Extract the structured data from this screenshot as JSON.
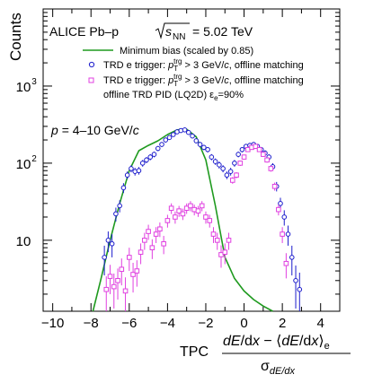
{
  "chart_data": {
    "type": "scatter",
    "title": "ALICE Pb–p",
    "collision_energy": "= 5.02 TeV",
    "annotation": "= 4–10 GeV/",
    "ylabel": "Counts",
    "xlabel_prefix": "TPC",
    "xlim": [
      -10.5,
      5
    ],
    "ylim": [
      1.2,
      10000
    ],
    "y_scale": "log",
    "x_ticks": [
      -10,
      -8,
      -6,
      -4,
      -2,
      0,
      2,
      4
    ],
    "x_tick_labels": [
      "−10",
      "−8",
      "−6",
      "−4",
      "−2",
      "0",
      "2",
      "4"
    ],
    "y_ticks": [
      10,
      100,
      1000
    ],
    "y_tick_mantissa": "10",
    "y_tick_exponents": [
      "",
      "2",
      "3"
    ],
    "legend_placement": "top",
    "series": [
      {
        "name": "Minimum bias (scaled by 0.85)",
        "kind": "line",
        "color": "#1f9a1f",
        "x": [
          -7.9,
          -7.5,
          -7.0,
          -6.5,
          -6.0,
          -5.5,
          -5.0,
          -4.5,
          -4.0,
          -3.5,
          -3.0,
          -2.5,
          -2.0,
          -1.5,
          -1.0,
          -0.5,
          0.0,
          0.5,
          1.0,
          1.5
        ],
        "y": [
          1.2,
          3,
          10,
          30,
          80,
          145,
          170,
          195,
          235,
          270,
          275,
          220,
          110,
          28,
          6,
          3.2,
          2.2,
          1.7,
          1.4,
          1.2
        ]
      },
      {
        "name": "TRD e trigger: > 3 GeV/, offline matching",
        "kind": "points",
        "marker": "circle",
        "color": "#1c1ccc",
        "x": [
          -7.3,
          -7.1,
          -6.9,
          -6.7,
          -6.5,
          -6.3,
          -6.1,
          -5.9,
          -5.7,
          -5.5,
          -5.3,
          -5.1,
          -4.9,
          -4.7,
          -4.5,
          -4.3,
          -4.1,
          -3.9,
          -3.7,
          -3.5,
          -3.3,
          -3.1,
          -2.9,
          -2.7,
          -2.5,
          -2.3,
          -2.1,
          -1.9,
          -1.7,
          -1.5,
          -1.3,
          -1.1,
          -0.9,
          -0.7,
          -0.5,
          -0.3,
          -0.1,
          0.1,
          0.3,
          0.5,
          0.7,
          0.9,
          1.1,
          1.3,
          1.5,
          1.7,
          1.9,
          2.1,
          2.3,
          2.5,
          2.7,
          2.9
        ],
        "y": [
          6,
          10,
          9,
          22,
          28,
          48,
          70,
          85,
          78,
          80,
          100,
          110,
          120,
          130,
          155,
          175,
          200,
          215,
          235,
          255,
          265,
          270,
          250,
          225,
          195,
          175,
          160,
          150,
          120,
          105,
          95,
          85,
          70,
          78,
          100,
          130,
          150,
          165,
          170,
          175,
          165,
          150,
          135,
          120,
          90,
          50,
          30,
          20,
          12,
          6,
          3,
          2.3
        ],
        "err": [
          2.5,
          3,
          3,
          4.5,
          5,
          7,
          8,
          9,
          9,
          9,
          10,
          10,
          11,
          11,
          12,
          13,
          14,
          15,
          15,
          16,
          16,
          16,
          16,
          15,
          14,
          13,
          13,
          12,
          11,
          10,
          10,
          9,
          8,
          9,
          10,
          11,
          12,
          13,
          13,
          13,
          13,
          12,
          12,
          11,
          10,
          7,
          5.5,
          4.5,
          3.5,
          2.5,
          1.7,
          1.5
        ]
      },
      {
        "name": "TRD e trigger: > 3 GeV/, offline matching",
        "name_line2": "offline TRD PID (LQ2D) ε",
        "name_line2_sub": "e",
        "name_line2_rest": "=90%",
        "kind": "points",
        "marker": "square",
        "color": "#e040e0",
        "x": [
          -7.2,
          -7.0,
          -6.8,
          -6.6,
          -6.4,
          -6.2,
          -6.0,
          -5.8,
          -5.6,
          -5.4,
          -5.2,
          -5.0,
          -4.8,
          -4.6,
          -4.4,
          -4.2,
          -4.0,
          -3.8,
          -3.6,
          -3.4,
          -3.2,
          -3.0,
          -2.8,
          -2.6,
          -2.4,
          -2.2,
          -2.0,
          -1.8,
          -1.6,
          -1.4,
          -1.2,
          -1.0,
          -0.8,
          -0.6,
          -0.4,
          -0.2,
          0.0,
          0.2,
          0.4,
          0.6,
          0.8,
          1.0,
          1.2,
          1.4,
          1.6,
          1.8,
          2.0,
          2.2
        ],
        "y": [
          2.3,
          3.4,
          2.5,
          3,
          4.2,
          2.2,
          6,
          3.6,
          4,
          7,
          10,
          13,
          8,
          12,
          14,
          9,
          18,
          26,
          20,
          24,
          22,
          26,
          28,
          25,
          24,
          28,
          20,
          18,
          12,
          10,
          6.5,
          7,
          10,
          60,
          70,
          100,
          120,
          150,
          160,
          165,
          150,
          130,
          110,
          85,
          50,
          25,
          12,
          5
        ],
        "err": [
          1.1,
          1.4,
          1.2,
          1.3,
          1.6,
          1.1,
          2.0,
          1.5,
          1.5,
          2.1,
          2.5,
          2.9,
          2.3,
          2.8,
          3.0,
          2.4,
          3.4,
          4.1,
          3.6,
          3.9,
          3.7,
          4.0,
          4.2,
          4.0,
          3.9,
          4.2,
          3.6,
          3.4,
          2.8,
          2.5,
          2.1,
          2.1,
          2.5,
          6,
          6.5,
          8,
          9,
          10,
          10.5,
          10.5,
          10,
          9,
          8.5,
          7.5,
          6,
          4,
          2.8,
          1.8
        ]
      }
    ]
  }
}
